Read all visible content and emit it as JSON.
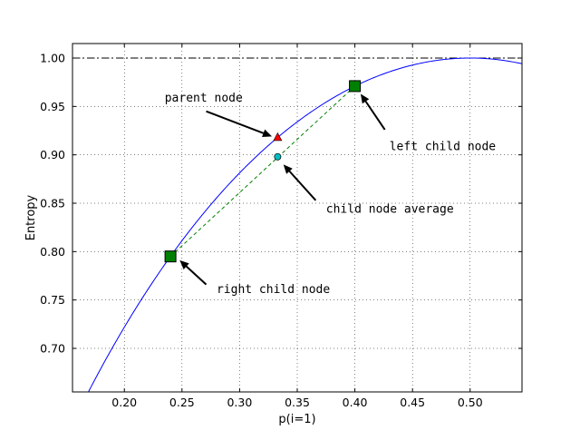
{
  "chart_data": {
    "type": "line",
    "title": "",
    "xlabel": "p(i=1)",
    "ylabel": "Entropy",
    "xlim": [
      0.155,
      0.545
    ],
    "ylim": [
      0.655,
      1.015
    ],
    "x_ticks": [
      0.2,
      0.25,
      0.3,
      0.35,
      0.4,
      0.45,
      0.5
    ],
    "x_tick_labels": [
      "0.20",
      "0.25",
      "0.30",
      "0.35",
      "0.40",
      "0.45",
      "0.50"
    ],
    "y_ticks": [
      0.7,
      0.75,
      0.8,
      0.85,
      0.9,
      0.95,
      1.0
    ],
    "y_tick_labels": [
      "0.70",
      "0.75",
      "0.80",
      "0.85",
      "0.90",
      "0.95",
      "1.00"
    ],
    "grid": true,
    "reference_line": {
      "y": 1.0,
      "style": "dash-dot",
      "color": "#000000"
    },
    "curve": {
      "function": "binary-entropy",
      "color": "#0000ff",
      "x": [
        0.155,
        0.17,
        0.18,
        0.2,
        0.22,
        0.24,
        0.26,
        0.28,
        0.3,
        0.32,
        0.333,
        0.35,
        0.37,
        0.4,
        0.42,
        0.45,
        0.47,
        0.5,
        0.52,
        0.545
      ],
      "y": [
        0.623,
        0.658,
        0.68,
        0.722,
        0.76,
        0.795,
        0.827,
        0.855,
        0.881,
        0.904,
        0.918,
        0.934,
        0.951,
        0.971,
        0.982,
        0.993,
        0.997,
        1.0,
        0.999,
        0.994
      ]
    },
    "points": [
      {
        "name": "parent node",
        "x": 0.333,
        "y": 0.918,
        "marker": "triangle",
        "color": "#ff0000"
      },
      {
        "name": "left child node",
        "x": 0.4,
        "y": 0.971,
        "marker": "square",
        "color": "#008000"
      },
      {
        "name": "right child node",
        "x": 0.24,
        "y": 0.795,
        "marker": "square",
        "color": "#008000"
      },
      {
        "name": "child node average",
        "x": 0.333,
        "y": 0.898,
        "marker": "circle",
        "color": "#00bfbf"
      }
    ],
    "dashed_segment": {
      "from": [
        0.24,
        0.795
      ],
      "to": [
        0.4,
        0.971
      ],
      "color": "#008000"
    },
    "annotations": [
      {
        "text": "parent node",
        "text_at": [
          0.235,
          0.955
        ],
        "arrow_from": [
          0.271,
          0.945
        ],
        "arrow_to": [
          0.328,
          0.919
        ]
      },
      {
        "text": "left child node",
        "text_at": [
          0.43,
          0.905
        ],
        "arrow_from": [
          0.426,
          0.926
        ],
        "arrow_to": [
          0.405,
          0.963
        ]
      },
      {
        "text": "child node average",
        "text_at": [
          0.375,
          0.84
        ],
        "arrow_from": [
          0.366,
          0.853
        ],
        "arrow_to": [
          0.338,
          0.89
        ]
      },
      {
        "text": "right child node",
        "text_at": [
          0.28,
          0.757
        ],
        "arrow_from": [
          0.271,
          0.766
        ],
        "arrow_to": [
          0.248,
          0.791
        ]
      }
    ]
  }
}
